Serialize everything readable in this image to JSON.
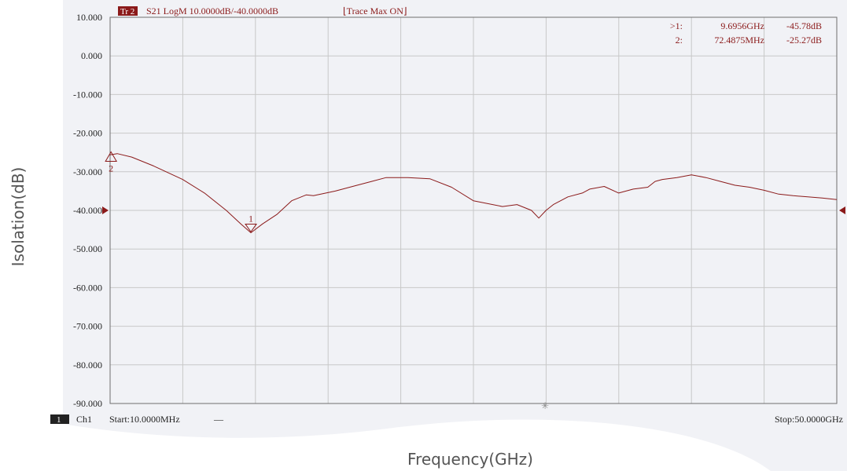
{
  "header": {
    "trace_tag": "Tr 2",
    "trace_info": "S21 LogM 10.0000dB/-40.0000dB",
    "trace_status": "⌊Trace Max ON⌋"
  },
  "marker_table": [
    {
      "id": ">1:",
      "freq": "9.6956GHz",
      "val": "-45.78dB"
    },
    {
      "id": "2:",
      "freq": "72.4875MHz",
      "val": "-25.27dB"
    }
  ],
  "footer": {
    "channel_number": "1",
    "channel_label": "Ch1",
    "start_label": "Start:10.0000MHz",
    "start_dash": "—",
    "stop_label": "Stop:50.0000GHz"
  },
  "axis_titles": {
    "x": "Frequency(GHz)",
    "y": "Isolation(dB)"
  },
  "colors": {
    "trace": "#8b1a1a",
    "grid": "#c8c8c8",
    "tag_bg": "#8b1a1a"
  },
  "chart_data": {
    "type": "line",
    "xlabel": "Frequency(GHz)",
    "ylabel": "Isolation(dB)",
    "xlim": [
      0.01,
      50.0
    ],
    "ylim": [
      -90,
      10
    ],
    "yticks": [
      "10.000",
      "0.000",
      "-10.000",
      "-20.000",
      "-30.000",
      "-40.000",
      "-50.000",
      "-60.000",
      "-70.000",
      "-80.000",
      "-90.000"
    ],
    "grid": true,
    "reference_level": -40,
    "series": [
      {
        "name": "S21",
        "x": [
          0.01,
          0.5,
          1.5,
          3.0,
          5.0,
          6.5,
          8.0,
          9.0,
          9.6956,
          10.5,
          11.5,
          12.5,
          13.5,
          14.0,
          15.5,
          17.0,
          18.0,
          19.0,
          20.5,
          22.0,
          23.5,
          25.0,
          27.0,
          28.0,
          29.0,
          29.5,
          30.0,
          30.5,
          31.5,
          32.5,
          33.0,
          34.0,
          35.0,
          36.0,
          37.0,
          37.5,
          38.0,
          39.0,
          40.0,
          41.0,
          42.0,
          43.0,
          44.0,
          45.0,
          46.0,
          47.0,
          48.0,
          49.0,
          50.0
        ],
        "y": [
          -25.6,
          -25.3,
          -26.2,
          -28.5,
          -32.0,
          -35.5,
          -40.0,
          -43.5,
          -45.8,
          -43.5,
          -41.0,
          -37.5,
          -36.0,
          -36.2,
          -35.0,
          -33.5,
          -32.5,
          -31.5,
          -31.5,
          -31.8,
          -34.0,
          -37.5,
          -39.0,
          -38.5,
          -40.0,
          -42.0,
          -40.0,
          -38.5,
          -36.5,
          -35.5,
          -34.5,
          -33.8,
          -35.5,
          -34.5,
          -34.0,
          -32.5,
          -32.0,
          -31.5,
          -30.8,
          -31.5,
          -32.5,
          -33.5,
          -34.0,
          -34.8,
          -35.8,
          -36.2,
          -36.5,
          -36.8,
          -37.2
        ]
      }
    ],
    "markers": [
      {
        "label": "1",
        "x": 9.6956,
        "y": -45.78
      },
      {
        "label": "2",
        "x": 0.0724875,
        "y": -25.27
      }
    ]
  }
}
